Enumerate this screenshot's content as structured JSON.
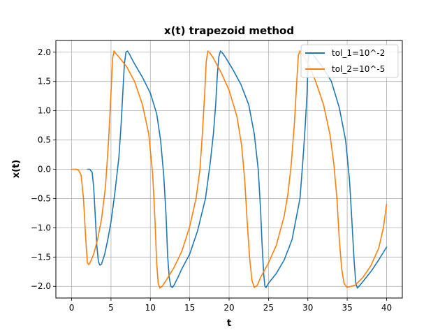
{
  "chart_data": {
    "type": "line",
    "title": "x(t) trapezoid method",
    "xlabel": "t",
    "ylabel": "x(t)",
    "xlim": [
      -2,
      42
    ],
    "ylim": [
      -2.2,
      2.2
    ],
    "xticks": [
      0,
      5,
      10,
      15,
      20,
      25,
      30,
      35,
      40
    ],
    "xtick_labels": [
      "0",
      "5",
      "10",
      "15",
      "20",
      "25",
      "30",
      "35",
      "40"
    ],
    "yticks": [
      -2.0,
      -1.5,
      -1.0,
      -0.5,
      0.0,
      0.5,
      1.0,
      1.5,
      2.0
    ],
    "ytick_labels": [
      "−2.0",
      "−1.5",
      "−1.0",
      "−0.5",
      "0.0",
      "0.5",
      "1.0",
      "1.5",
      "2.0"
    ],
    "grid": true,
    "legend_position": "top-right",
    "series": [
      {
        "name": "tol_1=10^-2",
        "color": "#1f77b4",
        "x": [
          2.0,
          2.3,
          2.6,
          2.8,
          3.0,
          3.2,
          3.4,
          3.6,
          3.8,
          4.2,
          4.6,
          5.0,
          5.5,
          6.0,
          6.3,
          6.5,
          6.7,
          6.9,
          7.1,
          7.3,
          7.6,
          8.0,
          9.0,
          10.0,
          10.8,
          11.3,
          11.7,
          12.0,
          12.2,
          12.4,
          12.6,
          12.8,
          12.9,
          13.0,
          13.5,
          14.0,
          15.0,
          16.0,
          17.0,
          17.6,
          18.0,
          18.3,
          18.5,
          18.7,
          18.9,
          19.2,
          19.6,
          20.5,
          21.5,
          22.5,
          23.2,
          23.7,
          24.0,
          24.2,
          24.4,
          24.55,
          24.7,
          25.0,
          26.0,
          27.0,
          28.0,
          29.0,
          29.4,
          29.7,
          29.9,
          30.0,
          30.1,
          30.3,
          30.6,
          31.0,
          32.0,
          33.0,
          34.0,
          34.8,
          35.3,
          35.6,
          35.9,
          36.1,
          36.3,
          36.5,
          37.0,
          38.0,
          39.0,
          40.0
        ],
        "y": [
          0.0,
          0.0,
          -0.05,
          -0.3,
          -0.8,
          -1.3,
          -1.58,
          -1.64,
          -1.62,
          -1.45,
          -1.2,
          -0.9,
          -0.4,
          0.2,
          0.8,
          1.3,
          1.8,
          2.0,
          2.02,
          1.98,
          1.9,
          1.8,
          1.57,
          1.3,
          0.95,
          0.5,
          -0.1,
          -0.8,
          -1.5,
          -1.85,
          -2.0,
          -2.02,
          -2.0,
          -1.98,
          -1.85,
          -1.7,
          -1.45,
          -1.05,
          -0.5,
          0.1,
          0.6,
          1.1,
          1.6,
          1.92,
          2.02,
          1.98,
          1.9,
          1.7,
          1.45,
          1.1,
          0.6,
          0.0,
          -0.7,
          -1.3,
          -1.8,
          -2.0,
          -2.02,
          -1.95,
          -1.78,
          -1.55,
          -1.2,
          -0.5,
          0.2,
          0.8,
          1.3,
          1.7,
          1.95,
          2.0,
          1.97,
          1.9,
          1.72,
          1.5,
          1.05,
          0.5,
          -0.2,
          -0.9,
          -1.6,
          -1.95,
          -2.03,
          -2.0,
          -1.92,
          -1.75,
          -1.55,
          -1.33
        ]
      },
      {
        "name": "tol_2=10^-5",
        "color": "#ff7f0e",
        "x": [
          0.0,
          0.3,
          0.6,
          0.9,
          1.2,
          1.5,
          1.8,
          2.0,
          2.2,
          2.4,
          2.8,
          3.3,
          3.8,
          4.3,
          4.7,
          5.0,
          5.2,
          5.4,
          5.6,
          6.0,
          7.0,
          8.0,
          9.0,
          9.8,
          10.3,
          10.6,
          10.8,
          11.0,
          11.2,
          11.5,
          12.0,
          13.0,
          14.0,
          15.0,
          15.8,
          16.3,
          16.6,
          16.9,
          17.1,
          17.3,
          17.6,
          18.0,
          19.0,
          20.0,
          21.0,
          21.6,
          22.0,
          22.3,
          22.6,
          22.9,
          23.2,
          23.6,
          24.0,
          25.0,
          26.0,
          27.0,
          27.5,
          27.9,
          28.3,
          28.6,
          28.8,
          29.0,
          29.4,
          30.0,
          31.0,
          32.0,
          32.8,
          33.3,
          33.7,
          34.0,
          34.3,
          34.6,
          35.0,
          36.0,
          37.0,
          38.0,
          39.0,
          39.6,
          40.0
        ],
        "y": [
          0.0,
          0.0,
          0.0,
          -0.02,
          -0.1,
          -0.5,
          -1.2,
          -1.6,
          -1.63,
          -1.58,
          -1.45,
          -1.2,
          -0.85,
          -0.3,
          0.5,
          1.3,
          1.9,
          2.02,
          1.98,
          1.92,
          1.75,
          1.5,
          1.1,
          0.6,
          -0.1,
          -0.9,
          -1.6,
          -1.95,
          -2.03,
          -2.0,
          -1.9,
          -1.68,
          -1.4,
          -0.98,
          -0.5,
          0.0,
          0.6,
          1.3,
          1.85,
          2.02,
          1.98,
          1.9,
          1.65,
          1.35,
          0.9,
          0.4,
          -0.2,
          -0.9,
          -1.5,
          -1.9,
          -2.02,
          -1.98,
          -1.85,
          -1.6,
          -1.3,
          -0.8,
          -0.4,
          0.1,
          0.8,
          1.5,
          1.95,
          2.02,
          1.95,
          1.82,
          1.5,
          1.1,
          0.6,
          0.1,
          -0.5,
          -1.2,
          -1.7,
          -1.95,
          -2.02,
          -1.98,
          -1.85,
          -1.65,
          -1.35,
          -1.0,
          -0.6
        ]
      }
    ]
  }
}
